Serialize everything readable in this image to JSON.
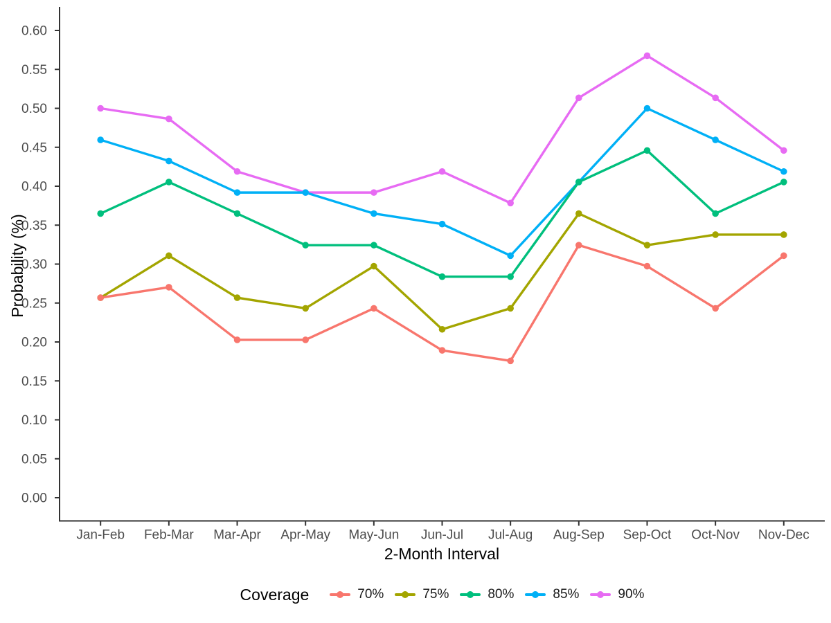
{
  "chart_data": {
    "type": "line",
    "title": "",
    "xlabel": "2-Month Interval",
    "ylabel": "Probability (%)",
    "categories": [
      "Jan-Feb",
      "Feb-Mar",
      "Mar-Apr",
      "Apr-May",
      "May-Jun",
      "Jun-Jul",
      "Jul-Aug",
      "Aug-Sep",
      "Sep-Oct",
      "Oct-Nov",
      "Nov-Dec"
    ],
    "y_ticks": [
      "0.00",
      "0.05",
      "0.10",
      "0.15",
      "0.20",
      "0.25",
      "0.30",
      "0.35",
      "0.40",
      "0.45",
      "0.50",
      "0.55",
      "0.60"
    ],
    "ylim": [
      0.0,
      0.6
    ],
    "grid": "off",
    "legend": {
      "title": "Coverage",
      "position": "bottom"
    },
    "axis_color": "#333333",
    "tick_label_color": "#4d4d4d",
    "series": [
      {
        "name": "70%",
        "color": "#F8766D",
        "values": [
          0.2568,
          0.2703,
          0.2027,
          0.2027,
          0.2432,
          0.1892,
          0.1757,
          0.3243,
          0.2973,
          0.2432,
          0.3108
        ]
      },
      {
        "name": "75%",
        "color": "#A3A500",
        "values": [
          0.2568,
          0.3108,
          0.2568,
          0.2432,
          0.2973,
          0.2162,
          0.2432,
          0.3649,
          0.3243,
          0.3378,
          0.3378
        ]
      },
      {
        "name": "80%",
        "color": "#00BF7D",
        "values": [
          0.3649,
          0.4054,
          0.3649,
          0.3243,
          0.3243,
          0.2838,
          0.2838,
          0.4054,
          0.4459,
          0.3649,
          0.4054
        ]
      },
      {
        "name": "85%",
        "color": "#00B0F6",
        "values": [
          0.4595,
          0.4324,
          0.3919,
          0.3919,
          0.3649,
          0.3514,
          0.3108,
          0.4054,
          0.5,
          0.4595,
          0.4189
        ]
      },
      {
        "name": "90%",
        "color": "#E76BF3",
        "values": [
          0.5,
          0.4865,
          0.4189,
          0.3919,
          0.3919,
          0.4189,
          0.3784,
          0.5135,
          0.5676,
          0.5135,
          0.4459
        ]
      }
    ]
  }
}
